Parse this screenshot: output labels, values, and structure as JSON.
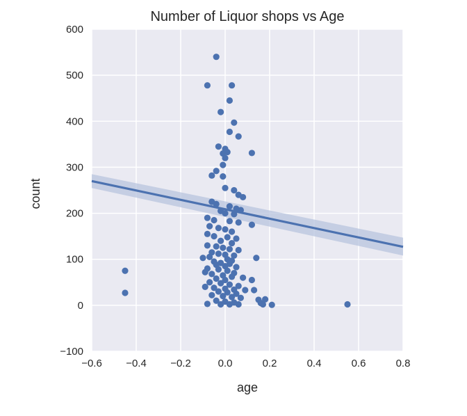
{
  "chart_data": {
    "type": "scatter",
    "title": "Number of Liquor shops vs Age",
    "xlabel": "age",
    "ylabel": "count",
    "xlim": [
      -0.6,
      0.8
    ],
    "ylim": [
      -100,
      600
    ],
    "x_ticks": [
      -0.6,
      -0.4,
      -0.2,
      0.0,
      0.2,
      0.4,
      0.6,
      0.8
    ],
    "x_tick_labels": [
      "−0.6",
      "−0.4",
      "−0.2",
      "0.0",
      "0.2",
      "0.4",
      "0.6",
      "0.8"
    ],
    "y_ticks": [
      -100,
      0,
      100,
      200,
      300,
      400,
      500,
      600
    ],
    "y_tick_labels": [
      "−100",
      "0",
      "100",
      "200",
      "300",
      "400",
      "500",
      "600"
    ],
    "grid": true,
    "colors": {
      "background": "#eaeaf2",
      "grid": "#ffffff",
      "series": "#4c72b0",
      "confidence_band": "#b8c4de"
    },
    "series": [
      {
        "values": [
          [
            -0.04,
            540
          ],
          [
            -0.08,
            478
          ],
          [
            0.03,
            478
          ],
          [
            0.02,
            445
          ],
          [
            -0.02,
            420
          ],
          [
            0.04,
            397
          ],
          [
            0.02,
            377
          ],
          [
            0.06,
            367
          ],
          [
            -0.03,
            345
          ],
          [
            0.0,
            340
          ],
          [
            0.01,
            333
          ],
          [
            -0.01,
            330
          ],
          [
            0.12,
            331
          ],
          [
            0.0,
            320
          ],
          [
            -0.01,
            305
          ],
          [
            -0.04,
            292
          ],
          [
            -0.06,
            282
          ],
          [
            -0.01,
            280
          ],
          [
            0.0,
            255
          ],
          [
            0.04,
            250
          ],
          [
            0.06,
            240
          ],
          [
            0.08,
            235
          ],
          [
            -0.06,
            225
          ],
          [
            -0.04,
            220
          ],
          [
            0.02,
            215
          ],
          [
            0.05,
            210
          ],
          [
            0.07,
            207
          ],
          [
            -0.02,
            205
          ],
          [
            0.0,
            200
          ],
          [
            0.04,
            198
          ],
          [
            -0.08,
            190
          ],
          [
            -0.05,
            185
          ],
          [
            0.02,
            183
          ],
          [
            0.06,
            180
          ],
          [
            0.12,
            175
          ],
          [
            -0.07,
            172
          ],
          [
            -0.03,
            168
          ],
          [
            0.0,
            165
          ],
          [
            0.03,
            160
          ],
          [
            -0.08,
            155
          ],
          [
            -0.05,
            150
          ],
          [
            0.01,
            148
          ],
          [
            0.05,
            145
          ],
          [
            -0.02,
            140
          ],
          [
            0.03,
            135
          ],
          [
            -0.08,
            130
          ],
          [
            -0.04,
            128
          ],
          [
            -0.01,
            125
          ],
          [
            0.02,
            122
          ],
          [
            0.06,
            120
          ],
          [
            -0.06,
            115
          ],
          [
            -0.03,
            112
          ],
          [
            0.0,
            110
          ],
          [
            0.04,
            108
          ],
          [
            -0.07,
            105
          ],
          [
            -0.1,
            103
          ],
          [
            0.14,
            103
          ],
          [
            0.01,
            100
          ],
          [
            0.03,
            97
          ],
          [
            -0.05,
            95
          ],
          [
            -0.02,
            92
          ],
          [
            0.02,
            90
          ],
          [
            -0.04,
            88
          ],
          [
            0.0,
            85
          ],
          [
            0.05,
            83
          ],
          [
            -0.08,
            80
          ],
          [
            -0.03,
            78
          ],
          [
            0.01,
            75
          ],
          [
            -0.09,
            72
          ],
          [
            0.04,
            70
          ],
          [
            -0.06,
            68
          ],
          [
            -0.01,
            65
          ],
          [
            0.03,
            62
          ],
          [
            0.08,
            60
          ],
          [
            -0.04,
            58
          ],
          [
            0.0,
            55
          ],
          [
            0.12,
            55
          ],
          [
            -0.07,
            50
          ],
          [
            -0.02,
            48
          ],
          [
            0.02,
            45
          ],
          [
            0.06,
            42
          ],
          [
            -0.09,
            40
          ],
          [
            -0.05,
            38
          ],
          [
            0.0,
            36
          ],
          [
            0.04,
            34
          ],
          [
            0.09,
            33
          ],
          [
            0.13,
            33
          ],
          [
            -0.03,
            30
          ],
          [
            0.01,
            28
          ],
          [
            0.05,
            25
          ],
          [
            -0.06,
            22
          ],
          [
            -0.01,
            20
          ],
          [
            0.03,
            18
          ],
          [
            0.07,
            16
          ],
          [
            0.15,
            12
          ],
          [
            0.18,
            13
          ],
          [
            -0.04,
            10
          ],
          [
            0.0,
            8
          ],
          [
            0.04,
            6
          ],
          [
            0.16,
            5
          ],
          [
            -0.08,
            3
          ],
          [
            -0.02,
            2
          ],
          [
            0.02,
            2
          ],
          [
            0.06,
            2
          ],
          [
            0.17,
            2
          ],
          [
            0.21,
            1
          ],
          [
            -0.45,
            75
          ],
          [
            -0.45,
            27
          ],
          [
            0.55,
            2
          ]
        ]
      }
    ],
    "regression": {
      "x": [
        -0.6,
        0.8
      ],
      "y": [
        270,
        127
      ],
      "ci_lower_y": [
        255,
        108
      ],
      "ci_upper_y": [
        285,
        147
      ]
    }
  }
}
